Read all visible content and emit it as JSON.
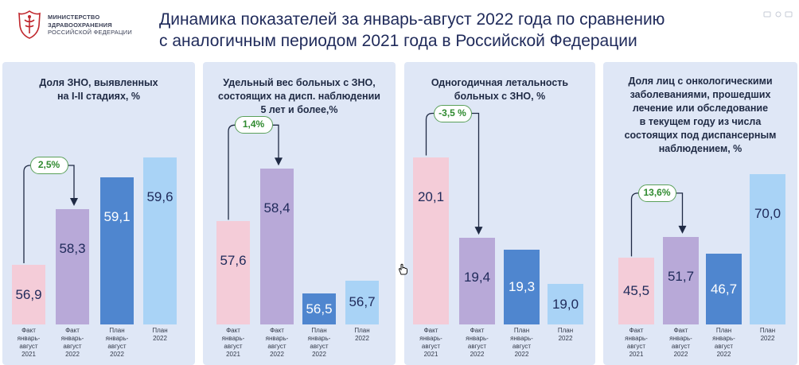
{
  "header": {
    "ministry_line1": "МИНИСТЕРСТВО",
    "ministry_line2": "ЗДРАВООХРАНЕНИЯ",
    "ministry_line3": "РОССИЙСКОЙ ФЕДЕРАЦИИ",
    "title_line1": "Динамика показателей за январь-август 2022 года по сравнению",
    "title_line2": "с аналогичным периодом 2021 года в Российской Федерации"
  },
  "colors": {
    "panel_bg": "#dfe7f6",
    "fact2021": "#f4ccd8",
    "fact2022": "#b8a9d8",
    "plan_ja2022": "#4f86cf",
    "plan2022": "#a9d3f6",
    "badge_green": "#2f8a2f"
  },
  "chart_data": [
    {
      "type": "bar",
      "title_lines": [
        "Доля ЗНО, выявленных",
        "на I-II стадиях, %"
      ],
      "categories": [
        [
          "Факт",
          "январь-",
          "август",
          "2021"
        ],
        [
          "Факт",
          "январь-",
          "август",
          "2022"
        ],
        [
          "План",
          "январь-",
          "август",
          "2022"
        ],
        [
          "План",
          "2022"
        ]
      ],
      "values": [
        56.9,
        58.3,
        59.1,
        59.6
      ],
      "value_labels": [
        "56,9",
        "58,3",
        "59,1",
        "59,6"
      ],
      "ylim": [
        55.4,
        60.8
      ],
      "change_label": "2,5%"
    },
    {
      "type": "bar",
      "title_lines": [
        "Удельный вес больных с ЗНО,",
        "состоящих на дисп. наблюдении",
        "5 лет и более,%"
      ],
      "categories": [
        [
          "Факт",
          "январь-",
          "август",
          "2021"
        ],
        [
          "Факт",
          "январь-",
          "август",
          "2022"
        ],
        [
          "План",
          "январь-",
          "август",
          "2022"
        ],
        [
          "План",
          "2022"
        ]
      ],
      "values": [
        57.6,
        58.4,
        56.5,
        56.7
      ],
      "value_labels": [
        "57,6",
        "58,4",
        "56,5",
        "56,7"
      ],
      "ylim": [
        56.03,
        59.3
      ],
      "change_label": "1,4%"
    },
    {
      "type": "bar",
      "title_lines": [
        "Одногодичная летальность",
        "больных с ЗНО, %"
      ],
      "categories": [
        [
          "Факт",
          "январь-",
          "август",
          "2021"
        ],
        [
          "Факт",
          "январь-",
          "август",
          "2022"
        ],
        [
          "План",
          "январь-",
          "август",
          "2022"
        ],
        [
          "План",
          "2022"
        ]
      ],
      "values": [
        20.1,
        19.4,
        19.3,
        19.0
      ],
      "value_labels": [
        "20,1",
        "19,4",
        "19,3",
        "19,0"
      ],
      "ylim": [
        18.65,
        20.51
      ],
      "change_label": "-3,5 %"
    },
    {
      "type": "bar",
      "title_lines": [
        "Доля лиц с онкологическими",
        "заболеваниями, прошедших",
        "лечение или обследование",
        "в текущем году из числа",
        "состоящих под диспансерным",
        "наблюдением, %"
      ],
      "categories": [
        [
          "Факт",
          "январь-",
          "август",
          "2021"
        ],
        [
          "Факт",
          "январь-",
          "август",
          "2022"
        ],
        [
          "План",
          "январь-",
          "август",
          "2022"
        ],
        [
          "План",
          "2022"
        ]
      ],
      "values": [
        45.5,
        51.7,
        46.7,
        70.0
      ],
      "value_labels": [
        "45,5",
        "51,7",
        "46,7",
        "70,0"
      ],
      "ylim": [
        26.0,
        89.0
      ],
      "change_label": "13,6%"
    }
  ]
}
